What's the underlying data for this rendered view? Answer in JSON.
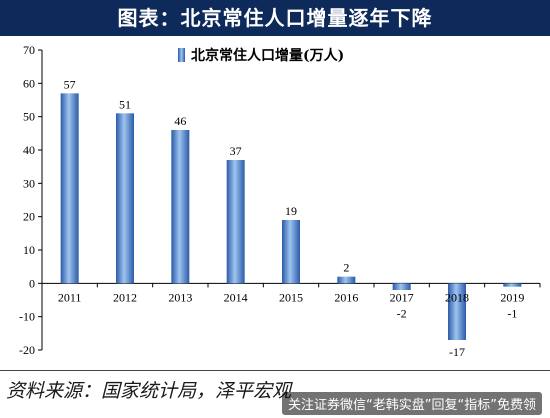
{
  "title": "图表：北京常住人口增量逐年下降",
  "source_text": "资料来源：国家统计局，泽平宏观",
  "watermark_text": "关注证券微信“老韩实盘”回复“指标”免费领",
  "colors": {
    "bar_dark": "#2b5ba8",
    "bar_light": "#9ec4f0",
    "title_bg": "#0d2a5a"
  },
  "chart_data": {
    "type": "bar",
    "title": "图表：北京常住人口增量逐年下降",
    "categories": [
      "2011",
      "2012",
      "2013",
      "2014",
      "2015",
      "2016",
      "2017",
      "2018",
      "2019"
    ],
    "series": [
      {
        "name": "北京常住人口增量(万人)",
        "values": [
          57,
          51,
          46,
          37,
          19,
          2,
          -2,
          -17,
          -1
        ]
      }
    ],
    "data_labels": [
      "57",
      "51",
      "46",
      "37",
      "19",
      "2",
      "-2",
      "-17",
      "-1"
    ],
    "y_ticks": [
      -20,
      -10,
      0,
      10,
      20,
      30,
      40,
      50,
      60,
      70
    ],
    "ylim": [
      -20,
      70
    ],
    "legend_position": "top-center",
    "grid": false
  }
}
